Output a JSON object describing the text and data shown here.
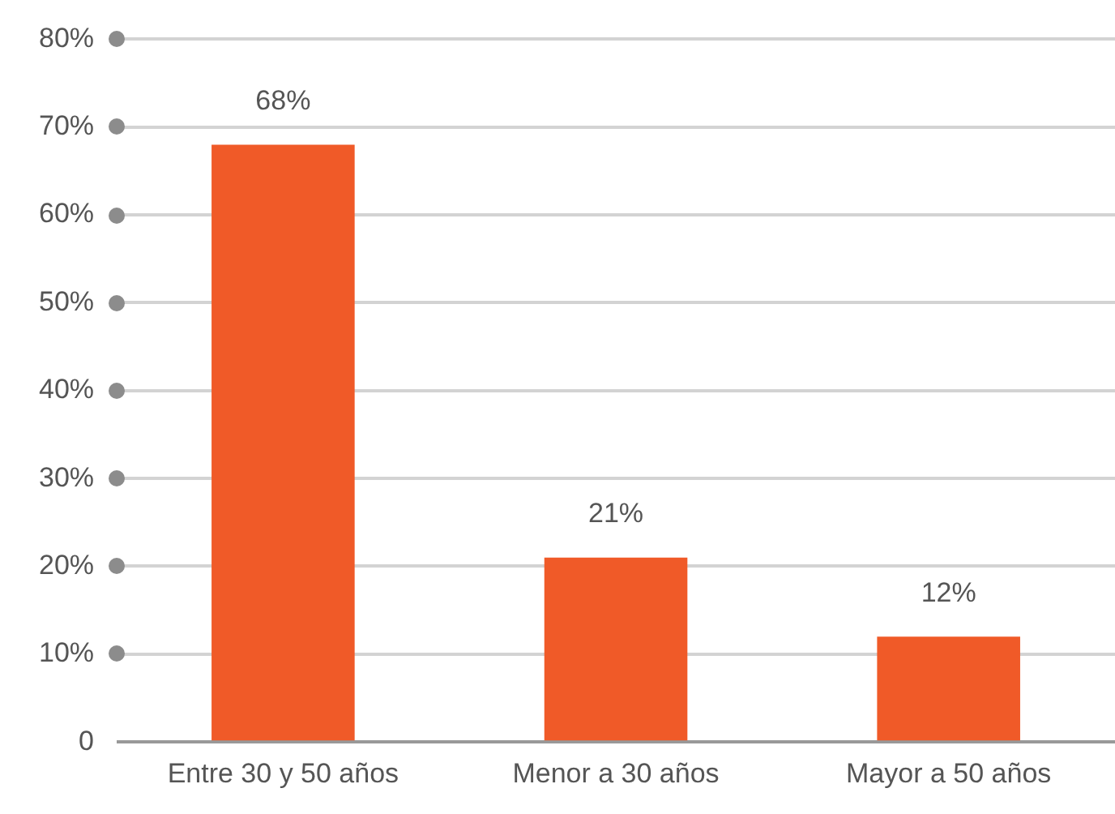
{
  "chart_data": {
    "type": "bar",
    "categories": [
      "Entre 30 y 50 años",
      "Menor a 30 años",
      "Mayor a 50 años"
    ],
    "values": [
      68,
      21,
      12
    ],
    "value_labels": [
      "68%",
      "21%",
      "12%"
    ],
    "color": "#f05a28",
    "ylim": [
      0,
      80
    ],
    "yticks": [
      0,
      {
        "value": 10,
        "label": "10%"
      },
      {
        "value": 20,
        "label": "20%"
      },
      {
        "value": 30,
        "label": "30%"
      },
      {
        "value": 40,
        "label": "40%"
      },
      {
        "value": 50,
        "label": "50%"
      },
      {
        "value": 60,
        "label": "60%"
      },
      {
        "value": 70,
        "label": "70%"
      },
      {
        "value": 80,
        "label": "80%"
      }
    ],
    "grid": "y",
    "legend": false
  }
}
